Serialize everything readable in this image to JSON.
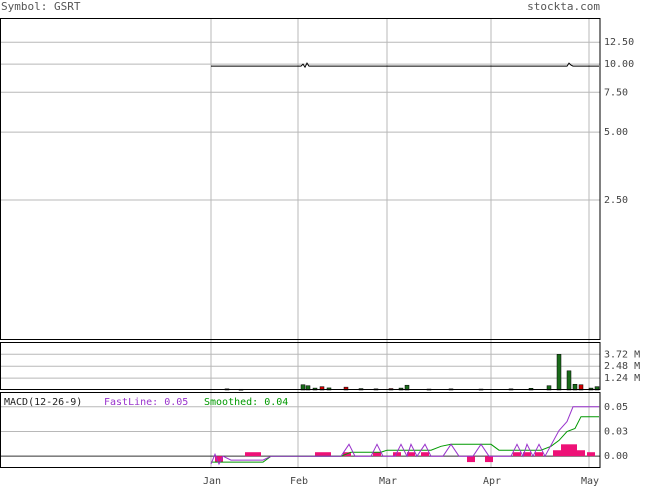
{
  "header": {
    "symbol_text": "Symbol: GSRT",
    "site_text": "stockta.com"
  },
  "colors": {
    "price_line": "#000000",
    "volume_up": "#1a6b1a",
    "volume_down": "#cc0000",
    "macd_fast": "#9933cc",
    "macd_smoothed": "#009900",
    "macd_hist": "#ee1177",
    "grid": "#b8b8b8",
    "label": "#444444"
  },
  "macd_legend": {
    "title": "MACD(12-26-9)",
    "fast_text": "FastLine: 0.05",
    "smoothed_text": "Smoothed: 0.04"
  },
  "chart_data": {
    "type": "line",
    "x_labels": [
      "Jan",
      "Feb",
      "Mar",
      "Apr",
      "May"
    ],
    "price_panel": {
      "scale": "log",
      "y_ticks": [
        "12.50",
        "10.00",
        "7.50",
        "5.00",
        "2.50"
      ],
      "y_tick_values": [
        12.5,
        10.0,
        7.5,
        5.0,
        2.5
      ],
      "ylim": [
        0.6,
        16.0
      ],
      "grid": true,
      "series": [
        {
          "values": [
            [
              0,
              9.8
            ],
            [
              10,
              9.8
            ],
            [
              20,
              9.8
            ],
            [
              30,
              9.8
            ],
            [
              40,
              9.8
            ],
            [
              50,
              9.8
            ],
            [
              60,
              9.8
            ],
            [
              70,
              9.8
            ],
            [
              80,
              9.8
            ],
            [
              90,
              9.8
            ],
            [
              92,
              10.0
            ],
            [
              94,
              9.7
            ],
            [
              96,
              10.1
            ],
            [
              98,
              9.8
            ],
            [
              100,
              9.8
            ],
            [
              110,
              9.8
            ],
            [
              120,
              9.8
            ],
            [
              130,
              9.8
            ],
            [
              140,
              9.8
            ],
            [
              150,
              9.8
            ],
            [
              160,
              9.8
            ],
            [
              170,
              9.8
            ],
            [
              180,
              9.8
            ],
            [
              190,
              9.8
            ],
            [
              200,
              9.8
            ],
            [
              210,
              9.8
            ],
            [
              220,
              9.8
            ],
            [
              230,
              9.8
            ],
            [
              240,
              9.8
            ],
            [
              250,
              9.8
            ],
            [
              260,
              9.8
            ],
            [
              270,
              9.8
            ],
            [
              280,
              9.8
            ],
            [
              290,
              9.8
            ],
            [
              300,
              9.8
            ],
            [
              310,
              9.8
            ],
            [
              320,
              9.8
            ],
            [
              330,
              9.8
            ],
            [
              340,
              9.8
            ],
            [
              350,
              9.8
            ],
            [
              356,
              9.8
            ],
            [
              358,
              10.1
            ],
            [
              360,
              9.9
            ],
            [
              362,
              9.8
            ],
            [
              370,
              9.8
            ],
            [
              380,
              9.8
            ],
            [
              388,
              9.8
            ]
          ]
        }
      ]
    },
    "volume_panel": {
      "y_ticks": [
        "3.72 M",
        "2.48 M",
        "1.24 M"
      ],
      "y_tick_values": [
        3.72,
        2.48,
        1.24
      ],
      "ylim": [
        0,
        5.0
      ],
      "bars": [
        {
          "x": 16,
          "v": 0.12,
          "dir": "up"
        },
        {
          "x": 30,
          "v": 0.08,
          "dir": "up"
        },
        {
          "x": 92,
          "v": 0.55,
          "dir": "up"
        },
        {
          "x": 97,
          "v": 0.45,
          "dir": "up"
        },
        {
          "x": 104,
          "v": 0.2,
          "dir": "up"
        },
        {
          "x": 111,
          "v": 0.35,
          "dir": "down"
        },
        {
          "x": 118,
          "v": 0.22,
          "dir": "up"
        },
        {
          "x": 135,
          "v": 0.3,
          "dir": "down"
        },
        {
          "x": 150,
          "v": 0.15,
          "dir": "up"
        },
        {
          "x": 165,
          "v": 0.12,
          "dir": "up"
        },
        {
          "x": 180,
          "v": 0.15,
          "dir": "down"
        },
        {
          "x": 190,
          "v": 0.2,
          "dir": "up"
        },
        {
          "x": 196,
          "v": 0.5,
          "dir": "up"
        },
        {
          "x": 218,
          "v": 0.1,
          "dir": "up"
        },
        {
          "x": 240,
          "v": 0.12,
          "dir": "up"
        },
        {
          "x": 270,
          "v": 0.1,
          "dir": "up"
        },
        {
          "x": 300,
          "v": 0.12,
          "dir": "up"
        },
        {
          "x": 320,
          "v": 0.18,
          "dir": "up"
        },
        {
          "x": 338,
          "v": 0.45,
          "dir": "up"
        },
        {
          "x": 348,
          "v": 3.72,
          "dir": "up"
        },
        {
          "x": 358,
          "v": 2.0,
          "dir": "up"
        },
        {
          "x": 364,
          "v": 0.6,
          "dir": "up"
        },
        {
          "x": 370,
          "v": 0.55,
          "dir": "down"
        },
        {
          "x": 380,
          "v": 0.2,
          "dir": "up"
        },
        {
          "x": 386,
          "v": 0.35,
          "dir": "up"
        }
      ]
    },
    "macd_panel": {
      "y_ticks": [
        "0.05",
        "0.03",
        "0.00"
      ],
      "y_tick_values": [
        0.05,
        0.025,
        0.0
      ],
      "ylim": [
        -0.012,
        0.065
      ],
      "fast_line": [
        [
          0,
          -0.008
        ],
        [
          4,
          0.002
        ],
        [
          8,
          -0.008
        ],
        [
          12,
          0.0
        ],
        [
          20,
          -0.004
        ],
        [
          52,
          -0.004
        ],
        [
          60,
          0.0
        ],
        [
          100,
          0.0
        ],
        [
          120,
          0.0
        ],
        [
          130,
          0.0
        ],
        [
          138,
          0.012
        ],
        [
          144,
          0.0
        ],
        [
          160,
          0.0
        ],
        [
          166,
          0.012
        ],
        [
          172,
          0.0
        ],
        [
          184,
          0.0
        ],
        [
          190,
          0.012
        ],
        [
          196,
          0.0
        ],
        [
          200,
          0.012
        ],
        [
          206,
          0.0
        ],
        [
          214,
          0.012
        ],
        [
          220,
          0.0
        ],
        [
          232,
          0.0
        ],
        [
          240,
          0.012
        ],
        [
          248,
          0.0
        ],
        [
          262,
          0.0
        ],
        [
          270,
          0.012
        ],
        [
          278,
          0.0
        ],
        [
          300,
          0.0
        ],
        [
          306,
          0.012
        ],
        [
          312,
          0.0
        ],
        [
          316,
          0.012
        ],
        [
          322,
          0.0
        ],
        [
          328,
          0.012
        ],
        [
          334,
          0.0
        ],
        [
          348,
          0.026
        ],
        [
          356,
          0.035
        ],
        [
          362,
          0.05
        ],
        [
          370,
          0.05
        ],
        [
          388,
          0.05
        ]
      ],
      "smoothed_line": [
        [
          0,
          -0.006
        ],
        [
          52,
          -0.006
        ],
        [
          60,
          0.0
        ],
        [
          130,
          0.0
        ],
        [
          140,
          0.004
        ],
        [
          170,
          0.004
        ],
        [
          176,
          0.006
        ],
        [
          220,
          0.006
        ],
        [
          230,
          0.01
        ],
        [
          240,
          0.012
        ],
        [
          280,
          0.012
        ],
        [
          288,
          0.006
        ],
        [
          330,
          0.006
        ],
        [
          340,
          0.01
        ],
        [
          348,
          0.016
        ],
        [
          356,
          0.025
        ],
        [
          364,
          0.028
        ],
        [
          370,
          0.04
        ],
        [
          388,
          0.04
        ]
      ],
      "histogram": [
        {
          "x": 8,
          "v": -0.006
        },
        {
          "x": 38,
          "v": 0.004
        },
        {
          "x": 46,
          "v": 0.004
        },
        {
          "x": 108,
          "v": 0.004
        },
        {
          "x": 116,
          "v": 0.004
        },
        {
          "x": 136,
          "v": 0.004
        },
        {
          "x": 166,
          "v": 0.004
        },
        {
          "x": 186,
          "v": 0.004
        },
        {
          "x": 200,
          "v": 0.004
        },
        {
          "x": 214,
          "v": 0.004
        },
        {
          "x": 260,
          "v": -0.006
        },
        {
          "x": 278,
          "v": -0.006
        },
        {
          "x": 306,
          "v": 0.004
        },
        {
          "x": 316,
          "v": 0.004
        },
        {
          "x": 328,
          "v": 0.004
        },
        {
          "x": 346,
          "v": 0.006
        },
        {
          "x": 354,
          "v": 0.012
        },
        {
          "x": 362,
          "v": 0.012
        },
        {
          "x": 370,
          "v": 0.006
        },
        {
          "x": 380,
          "v": 0.004
        }
      ]
    }
  }
}
